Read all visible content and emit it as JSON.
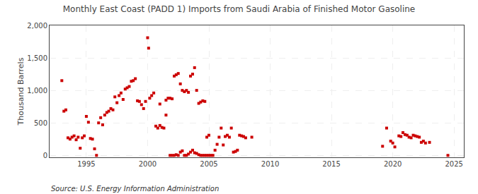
{
  "chart_data": {
    "type": "scatter",
    "title": "Monthly East Coast (PADD 1) Imports from Saudi Arabia of Finished Motor Gasoline",
    "ylabel": "Thousand Barrels",
    "annotations": [
      "Source: U.S. Energy Information Administration"
    ],
    "color": "#CC0000",
    "marker": "square",
    "grid": true,
    "xlim": [
      1992.0,
      2025.8
    ],
    "ylim": [
      -30,
      2000
    ],
    "xticks": [
      1995,
      2000,
      2005,
      2010,
      2015,
      2020,
      2025
    ],
    "yticks": [
      0,
      500,
      {
        "value": 1000,
        "label": "1,000"
      },
      {
        "value": 1500,
        "label": "1,500"
      },
      {
        "value": 2000,
        "label": "2,000"
      }
    ],
    "x": [
      1993.0,
      1993.17,
      1993.33,
      1993.5,
      1993.67,
      1993.83,
      1994.0,
      1994.17,
      1994.33,
      1994.5,
      1994.67,
      1994.83,
      1995.0,
      1995.17,
      1995.33,
      1995.5,
      1995.67,
      1995.83,
      1996.0,
      1996.17,
      1996.33,
      1996.5,
      1996.67,
      1996.83,
      1997.0,
      1997.17,
      1997.33,
      1997.5,
      1997.67,
      1997.83,
      1998.0,
      1998.17,
      1998.33,
      1998.5,
      1998.67,
      1998.83,
      1999.0,
      1999.17,
      1999.33,
      1999.5,
      1999.67,
      1999.83,
      2000.0,
      2000.08,
      2000.17,
      2000.33,
      2000.5,
      2000.67,
      2000.83,
      2001.0,
      2001.17,
      2001.33,
      2001.5,
      2001.67,
      2001.83,
      2002.0,
      2002.17,
      2002.33,
      2002.5,
      2002.67,
      2002.83,
      2003.0,
      2003.17,
      2003.33,
      2003.5,
      2003.67,
      2003.83,
      2004.0,
      2004.17,
      2004.33,
      2004.5,
      2004.67,
      2004.83,
      2005.0,
      2001.0,
      2001.5,
      2001.83,
      2002.0,
      2002.17,
      2002.33,
      2002.5,
      2002.67,
      2002.83,
      2003.0,
      2003.17,
      2003.33,
      2003.5,
      2003.67,
      2003.83,
      2004.0,
      2004.17,
      2004.33,
      2004.5,
      2004.67,
      2004.83,
      2005.0,
      2005.17,
      2005.33,
      2005.5,
      2005.67,
      2005.83,
      2006.0,
      2006.17,
      2006.33,
      2006.5,
      2006.67,
      2006.83,
      2007.0,
      2007.17,
      2007.33,
      2007.5,
      2007.67,
      2007.83,
      2008.0,
      2008.5,
      2019.17,
      2019.5,
      2019.83,
      2020.0,
      2020.17,
      2020.5,
      2020.67,
      2020.83,
      2021.0,
      2021.17,
      2021.33,
      2021.5,
      2021.67,
      2021.83,
      2022.0,
      2022.17,
      2022.33,
      2022.5,
      2022.67,
      2023.0,
      2024.5
    ],
    "values": [
      1150,
      680,
      700,
      270,
      250,
      280,
      300,
      240,
      280,
      110,
      270,
      300,
      600,
      510,
      260,
      250,
      100,
      0,
      500,
      580,
      470,
      620,
      660,
      680,
      720,
      700,
      900,
      810,
      920,
      960,
      860,
      1020,
      1040,
      1060,
      1140,
      1150,
      1180,
      840,
      830,
      780,
      720,
      830,
      1810,
      1650,
      880,
      920,
      960,
      450,
      420,
      460,
      430,
      420,
      850,
      880,
      880,
      870,
      1220,
      1240,
      1260,
      1100,
      1000,
      980,
      1000,
      970,
      1220,
      1250,
      1350,
      1000,
      800,
      820,
      840,
      830,
      280,
      310,
      790,
      620,
      0,
      0,
      0,
      10,
      0,
      50,
      70,
      0,
      0,
      20,
      50,
      80,
      40,
      30,
      10,
      0,
      0,
      0,
      0,
      0,
      0,
      0,
      80,
      170,
      280,
      420,
      160,
      290,
      310,
      280,
      420,
      50,
      60,
      80,
      310,
      300,
      290,
      270,
      280,
      140,
      420,
      220,
      190,
      130,
      300,
      290,
      350,
      320,
      310,
      280,
      270,
      310,
      300,
      290,
      280,
      200,
      220,
      190,
      200,
      0
    ]
  }
}
